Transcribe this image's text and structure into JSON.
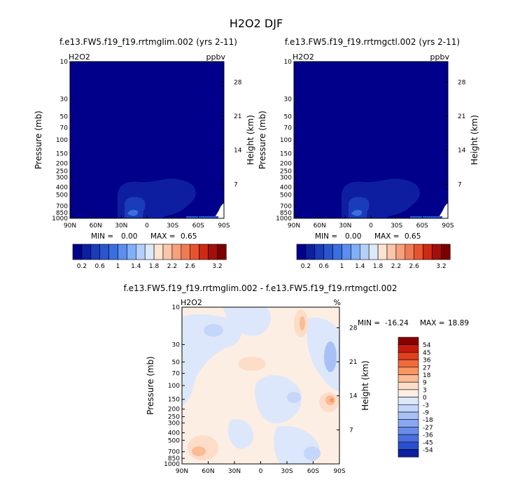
{
  "page_title": "H2O2 DJF",
  "chart_data": [
    {
      "type": "heatmap",
      "title": "f.e13.FW5.f19_f19.rrtmglim.002 (yrs 2-11)",
      "field_label": "H2O2",
      "units": "ppbv",
      "ylabel": "Pressure (mb)",
      "ylabel_right": "Height (km)",
      "x_ticks": [
        "90N",
        "60N",
        "30N",
        "0",
        "30S",
        "60S",
        "90S"
      ],
      "y_ticks": [
        "10",
        "30",
        "50",
        "70",
        "100",
        "150",
        "200",
        "250",
        "300",
        "400",
        "500",
        "700",
        "850",
        "1000"
      ],
      "y_right_ticks": [
        "28",
        "21",
        "14",
        "7"
      ],
      "stats": {
        "min_label": "MIN =",
        "min": "0.00",
        "max_label": "MAX =",
        "max": "0.65"
      },
      "colorbar": {
        "orientation": "horizontal",
        "labels": [
          "0.2",
          "0.6",
          "1",
          "1.4",
          "1.8",
          "2.2",
          "2.6",
          "3.2"
        ],
        "levels": [
          0.2,
          0.4,
          0.6,
          0.8,
          1.0,
          1.2,
          1.4,
          1.6,
          1.8,
          2.0,
          2.2,
          2.4,
          2.6,
          2.8,
          3.0,
          3.2
        ]
      }
    },
    {
      "type": "heatmap",
      "title": "f.e13.FW5.f19_f19.rrtmgctl.002 (yrs 2-11)",
      "field_label": "H2O2",
      "units": "ppbv",
      "ylabel": "Pressure (mb)",
      "ylabel_right": "Height (km)",
      "x_ticks": [
        "90N",
        "60N",
        "30N",
        "0",
        "30S",
        "60S",
        "90S"
      ],
      "y_ticks": [
        "10",
        "30",
        "50",
        "70",
        "100",
        "150",
        "200",
        "250",
        "300",
        "400",
        "500",
        "700",
        "850",
        "1000"
      ],
      "y_right_ticks": [
        "28",
        "21",
        "14",
        "7"
      ],
      "stats": {
        "min_label": "MIN =",
        "min": "0.00",
        "max_label": "MAX =",
        "max": "0.65"
      },
      "colorbar": {
        "orientation": "horizontal",
        "labels": [
          "0.2",
          "0.6",
          "1",
          "1.4",
          "1.8",
          "2.2",
          "2.6",
          "3.2"
        ],
        "levels": [
          0.2,
          0.4,
          0.6,
          0.8,
          1.0,
          1.2,
          1.4,
          1.6,
          1.8,
          2.0,
          2.2,
          2.4,
          2.6,
          2.8,
          3.0,
          3.2
        ]
      }
    },
    {
      "type": "heatmap",
      "title": "f.e13.FW5.f19_f19.rrtmglim.002 - f.e13.FW5.f19_f19.rrtmgctl.002",
      "field_label": "H2O2",
      "units": "%",
      "ylabel": "Pressure (mb)",
      "ylabel_right": "Height (km)",
      "x_ticks": [
        "90N",
        "60N",
        "30N",
        "0",
        "30S",
        "60S",
        "90S"
      ],
      "y_ticks": [
        "10",
        "30",
        "50",
        "70",
        "100",
        "150",
        "200",
        "250",
        "300",
        "400",
        "500",
        "700",
        "850",
        "1000"
      ],
      "y_right_ticks": [
        "28",
        "21",
        "14",
        "7"
      ],
      "stats": {
        "min_label": "MIN =",
        "min": "-16.24",
        "max_label": "MAX =",
        "max": "18.89"
      },
      "colorbar": {
        "orientation": "vertical",
        "labels": [
          "54",
          "45",
          "36",
          "27",
          "18",
          "9",
          "3",
          "0",
          "-3",
          "-9",
          "-18",
          "-27",
          "-36",
          "-45",
          "-54"
        ]
      }
    }
  ],
  "colors": {
    "seq": [
      "#00008b",
      "#0d1fa0",
      "#1a3cb8",
      "#2a55cc",
      "#3b6fe0",
      "#5a8ef0",
      "#80aef7",
      "#b4d0fa",
      "#dde8fb",
      "#fde4d2",
      "#fbc6a8",
      "#f7a07c",
      "#f27a52",
      "#e8532f",
      "#cf2a13",
      "#a50f0a",
      "#7a0000"
    ],
    "diff_top_to_bottom": [
      "#8b0000",
      "#c51b0e",
      "#e0401e",
      "#f06a3a",
      "#f79563",
      "#fbbb93",
      "#fddcc8",
      "#fdeee3",
      "#dde7fb",
      "#c4d6fa",
      "#a7c1f7",
      "#88a8f2",
      "#6a8dea",
      "#4a6fe0",
      "#2a4fcf",
      "#0d1fa0"
    ]
  }
}
